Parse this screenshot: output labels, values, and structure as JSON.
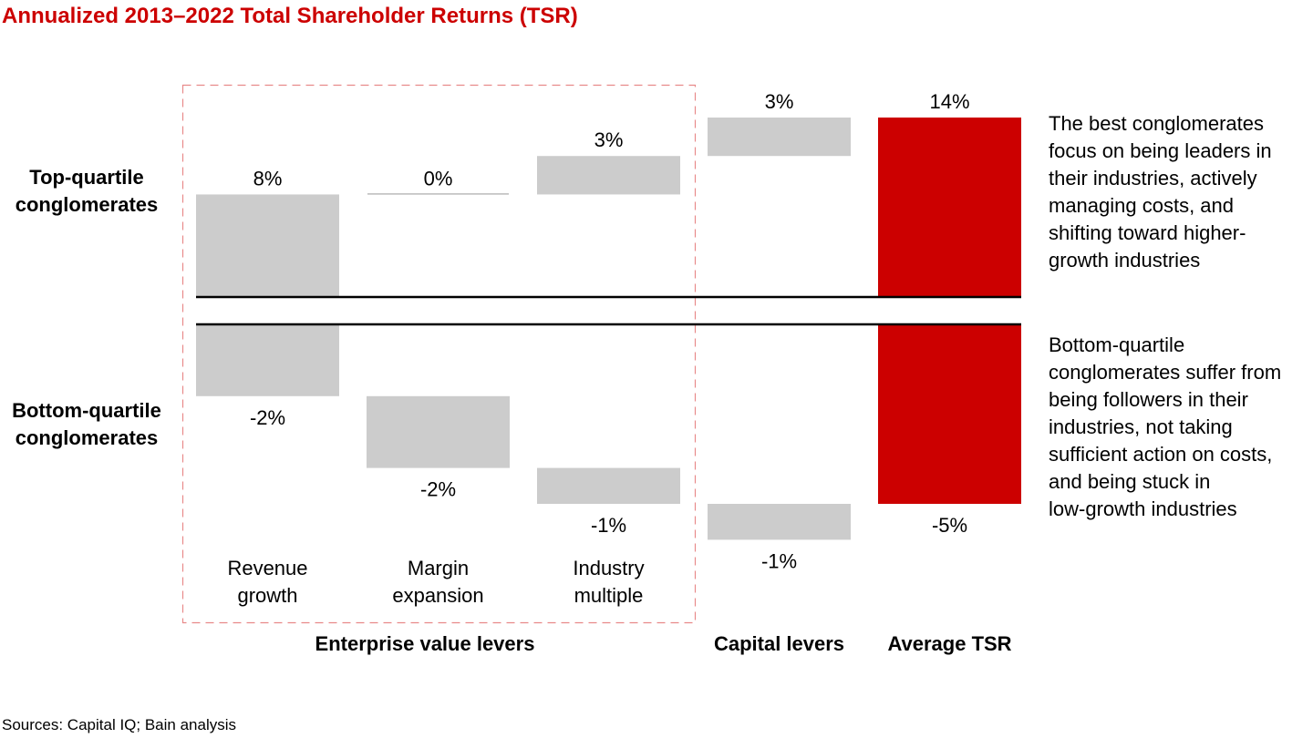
{
  "title": "Annualized 2013–2022 Total Shareholder Returns (TSR)",
  "source": "Sources: Capital IQ; Bain analysis",
  "row_labels": {
    "top": [
      "Top-quartile",
      "conglomerates"
    ],
    "bottom": [
      "Bottom-quartile",
      "conglomerates"
    ]
  },
  "annotations": {
    "top": [
      "The best conglomerates",
      "focus on being leaders in",
      "their industries, actively",
      "managing costs, and",
      "shifting toward higher-",
      "growth industries"
    ],
    "bottom": [
      "Bottom-quartile",
      "conglomerates suffer from",
      "being followers in their",
      "industries, not taking",
      "sufficient action on costs,",
      "and being stuck in",
      "low-growth industries"
    ]
  },
  "colors": {
    "lever": "#cccccc",
    "total": "#cc0000",
    "title": "#cc0000",
    "group_box": "#e88a8a"
  },
  "chart_data": {
    "type": "bar",
    "subtype": "waterfall",
    "unit": "%",
    "categories": [
      [
        "Revenue",
        "growth"
      ],
      [
        "Margin",
        "expansion"
      ],
      [
        "Industry",
        "multiple"
      ],
      [],
      []
    ],
    "groups": [
      {
        "label": "Enterprise value levers",
        "categories": [
          0,
          1,
          2
        ],
        "boxed": true
      },
      {
        "label": "Capital levers",
        "categories": [
          3
        ]
      },
      {
        "label": "Average TSR",
        "categories": [
          4
        ]
      }
    ],
    "series": [
      {
        "name": "Top-quartile conglomerates",
        "values": [
          8,
          0,
          3,
          3,
          14
        ],
        "labels": [
          "8%",
          "0%",
          "3%",
          "3%",
          "14%"
        ],
        "total_index": 4
      },
      {
        "name": "Bottom-quartile conglomerates",
        "values": [
          -2,
          -2,
          -1,
          -1,
          -5
        ],
        "labels": [
          "-2%",
          "-2%",
          "-1%",
          "-1%",
          "-5%"
        ],
        "total_index": 4
      }
    ]
  }
}
